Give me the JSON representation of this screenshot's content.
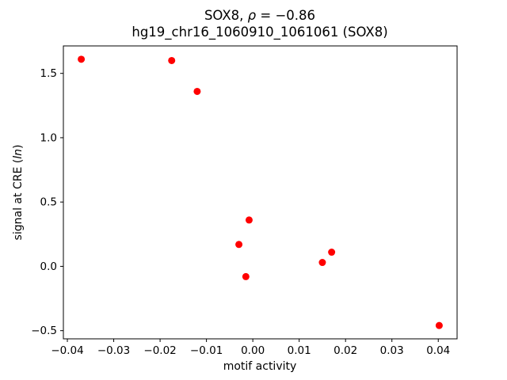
{
  "figure": {
    "background": "#ffffff"
  },
  "title": {
    "line1_prefix": "SOX8, ",
    "line1_rho": "ρ",
    "line1_suffix": " = −0.86",
    "line2": "hg19_chr16_1060910_1061061 (SOX8)"
  },
  "chart_data": {
    "type": "scatter",
    "title": "SOX8, ρ = −0.86",
    "subtitle": "hg19_chr16_1060910_1061061 (SOX8)",
    "rho": -0.86,
    "xlabel": "motif activity",
    "ylabel": "signal at CRE (ln)",
    "ylabel_parts": {
      "prefix": "signal at CRE (",
      "italic": "ln",
      "suffix": ")"
    },
    "marker": "circle",
    "marker_color": "#ff0000",
    "grid": false,
    "legend": "none",
    "xlim": [
      -0.04086,
      0.04406
    ],
    "ylim": [
      -0.5635,
      1.7135
    ],
    "xticks": {
      "values": [
        -0.04,
        -0.03,
        -0.02,
        -0.01,
        0.0,
        0.01,
        0.02,
        0.03,
        0.04
      ],
      "labels": [
        "−0.04",
        "−0.03",
        "−0.02",
        "−0.01",
        "0.00",
        "0.01",
        "0.02",
        "0.03",
        "0.04"
      ]
    },
    "yticks": {
      "values": [
        -0.5,
        0.0,
        0.5,
        1.0,
        1.5
      ],
      "labels": [
        "−0.5",
        "0.0",
        "0.5",
        "1.0",
        "1.5"
      ]
    },
    "points": [
      [
        -0.037,
        1.61
      ],
      [
        -0.0175,
        1.6
      ],
      [
        -0.012,
        1.36
      ],
      [
        -0.0008,
        0.36
      ],
      [
        -0.003,
        0.17
      ],
      [
        -0.0015,
        -0.08
      ],
      [
        0.015,
        0.03
      ],
      [
        0.017,
        0.11
      ],
      [
        0.0402,
        -0.46
      ]
    ]
  }
}
